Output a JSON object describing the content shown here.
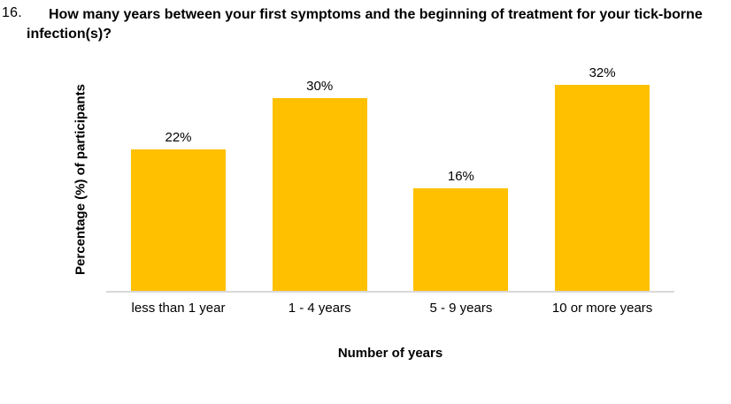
{
  "question": {
    "number": "16.",
    "text": "How many years between your first symptoms and the beginning of treatment for your tick-borne infection(s)?"
  },
  "chart_data": {
    "type": "bar",
    "categories": [
      "less than 1 year",
      "1 - 4 years",
      "5 - 9 years",
      "10 or more years"
    ],
    "values": [
      22,
      30,
      16,
      32
    ],
    "value_labels": [
      "22%",
      "30%",
      "16%",
      "32%"
    ],
    "title": "",
    "xlabel": "Number of years",
    "ylabel": "Percentage (%) of participants",
    "ylim": [
      0,
      35
    ],
    "grid": false,
    "legend": "none",
    "data_labels": "outside-end",
    "bar_color": "#FFC000",
    "axis_line_color": "#D9D9D9",
    "text_color": "#000000"
  }
}
